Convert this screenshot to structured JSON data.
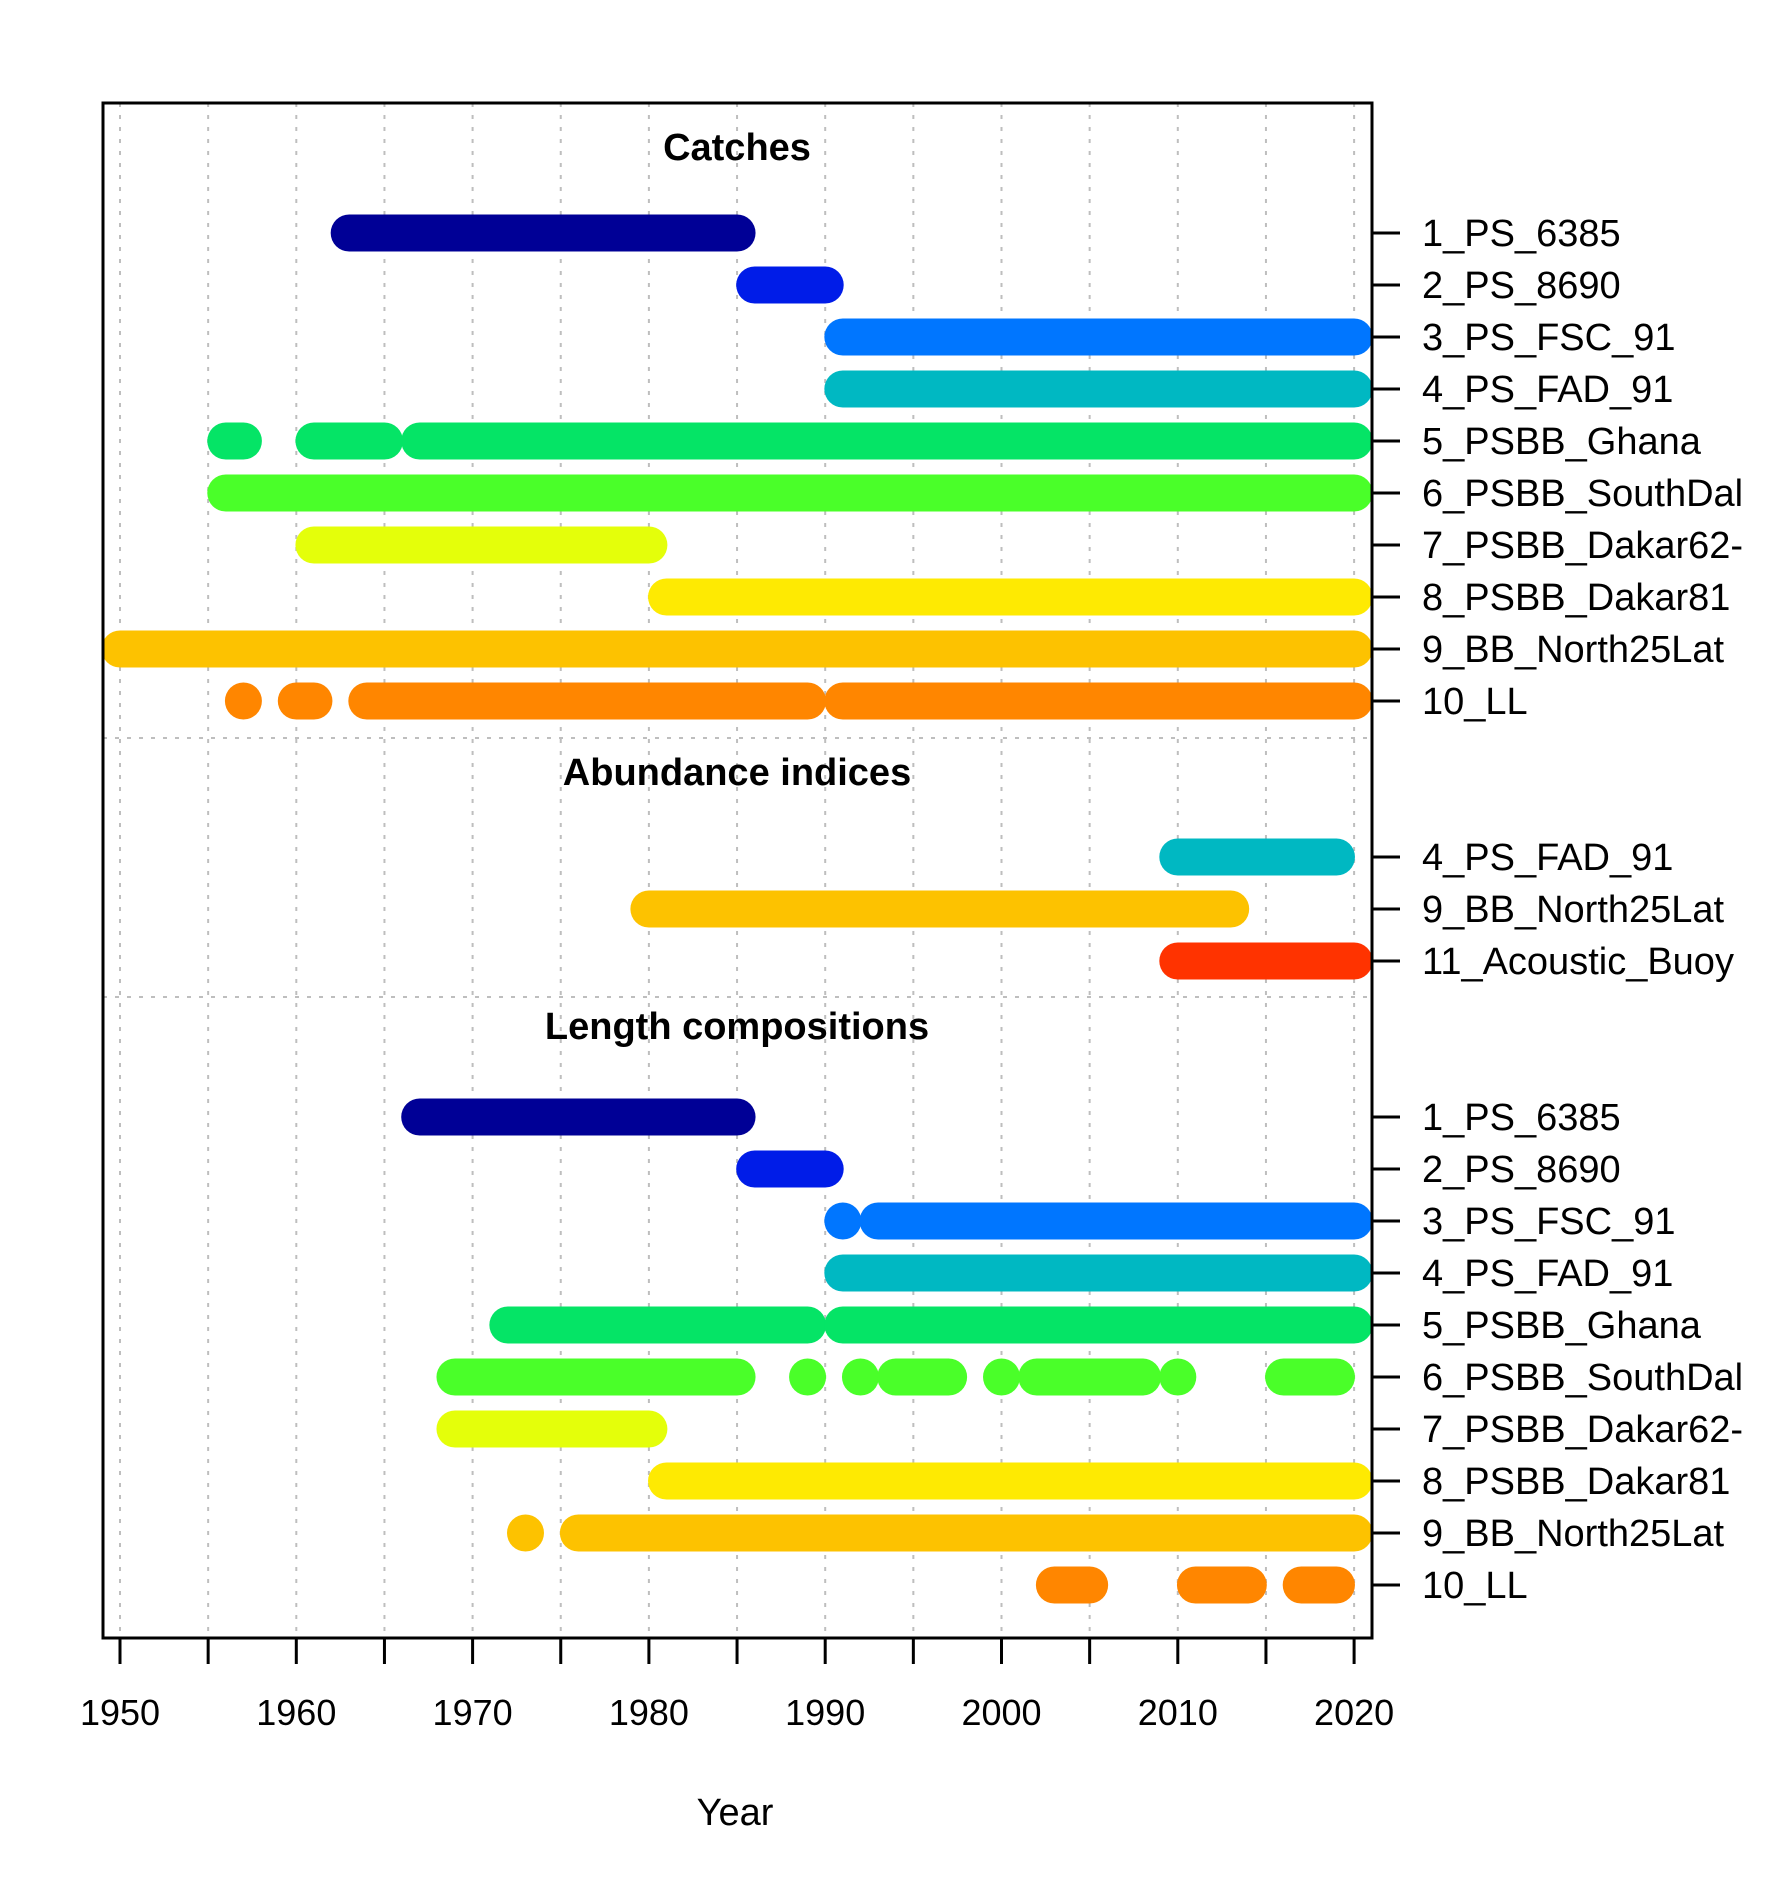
{
  "chart_data": {
    "type": "timeline",
    "xlabel": "Year",
    "xlim": [
      1949,
      2021
    ],
    "xticks": [
      1950,
      1955,
      1960,
      1965,
      1970,
      1975,
      1980,
      1985,
      1990,
      1995,
      2000,
      2005,
      2010,
      2015,
      2020
    ],
    "xtick_labels": [
      "1950",
      "1960",
      "1970",
      "1980",
      "1990",
      "2000",
      "2010",
      "2020"
    ],
    "grid": true,
    "fleet_colors": {
      "1_PS_6385": "#000096",
      "2_PS_8690": "#001CE8",
      "3_PS_FSC_91": "#0076FF",
      "4_PS_FAD_91": "#00B8C2",
      "5_PSBB_Ghana": "#05E466",
      "6_PSBB_SouthDal": "#4AFF29",
      "7_PSBB_Dakar62-": "#E4FF0A",
      "8_PSBB_Dakar81": "#FEEA02",
      "9_BB_North25Lat": "#FDC200",
      "10_LL": "#FF8600",
      "11_Acoustic_Buoy": "#FF3300"
    },
    "panels": [
      {
        "title": "Catches",
        "rows": [
          {
            "label": "1_PS_6385",
            "segments": [
              [
                1963,
                1985
              ]
            ]
          },
          {
            "label": "2_PS_8690",
            "segments": [
              [
                1986,
                1990
              ]
            ]
          },
          {
            "label": "3_PS_FSC_91",
            "segments": [
              [
                1991,
                2020
              ]
            ]
          },
          {
            "label": "4_PS_FAD_91",
            "segments": [
              [
                1991,
                2020
              ]
            ]
          },
          {
            "label": "5_PSBB_Ghana",
            "segments": [
              [
                1956,
                1957
              ],
              [
                1961,
                1965
              ],
              [
                1967,
                2020
              ]
            ]
          },
          {
            "label": "6_PSBB_SouthDal",
            "segments": [
              [
                1956,
                2020
              ]
            ]
          },
          {
            "label": "7_PSBB_Dakar62-",
            "segments": [
              [
                1961,
                1980
              ]
            ]
          },
          {
            "label": "8_PSBB_Dakar81",
            "segments": [
              [
                1981,
                2020
              ]
            ]
          },
          {
            "label": "9_BB_North25Lat",
            "segments": [
              [
                1950,
                2020
              ]
            ]
          },
          {
            "label": "10_LL",
            "segments": [
              [
                1957,
                1957
              ],
              [
                1960,
                1961
              ],
              [
                1964,
                1989
              ],
              [
                1991,
                2020
              ]
            ]
          }
        ]
      },
      {
        "title": "Abundance indices",
        "rows": [
          {
            "label": "4_PS_FAD_91",
            "segments": [
              [
                2010,
                2019
              ]
            ]
          },
          {
            "label": "9_BB_North25Lat",
            "segments": [
              [
                1980,
                2013
              ]
            ]
          },
          {
            "label": "11_Acoustic_Buoy",
            "segments": [
              [
                2010,
                2020
              ]
            ]
          }
        ]
      },
      {
        "title": "Length compositions",
        "rows": [
          {
            "label": "1_PS_6385",
            "segments": [
              [
                1967,
                1985
              ]
            ]
          },
          {
            "label": "2_PS_8690",
            "segments": [
              [
                1986,
                1990
              ]
            ]
          },
          {
            "label": "3_PS_FSC_91",
            "segments": [
              [
                1991,
                1991
              ],
              [
                1993,
                2020
              ]
            ]
          },
          {
            "label": "4_PS_FAD_91",
            "segments": [
              [
                1991,
                2020
              ]
            ]
          },
          {
            "label": "5_PSBB_Ghana",
            "segments": [
              [
                1972,
                1989
              ],
              [
                1991,
                2020
              ]
            ]
          },
          {
            "label": "6_PSBB_SouthDal",
            "segments": [
              [
                1969,
                1985
              ],
              [
                1989,
                1989
              ],
              [
                1992,
                1992
              ],
              [
                1994,
                1997
              ],
              [
                2000,
                2000
              ],
              [
                2002,
                2008
              ],
              [
                2010,
                2010
              ],
              [
                2016,
                2019
              ]
            ]
          },
          {
            "label": "7_PSBB_Dakar62-",
            "segments": [
              [
                1969,
                1980
              ]
            ]
          },
          {
            "label": "8_PSBB_Dakar81",
            "segments": [
              [
                1981,
                2020
              ]
            ]
          },
          {
            "label": "9_BB_North25Lat",
            "segments": [
              [
                1973,
                1973
              ],
              [
                1976,
                2020
              ]
            ]
          },
          {
            "label": "10_LL",
            "segments": [
              [
                2003,
                2005
              ],
              [
                2011,
                2014
              ],
              [
                2017,
                2019
              ]
            ]
          }
        ]
      }
    ]
  }
}
